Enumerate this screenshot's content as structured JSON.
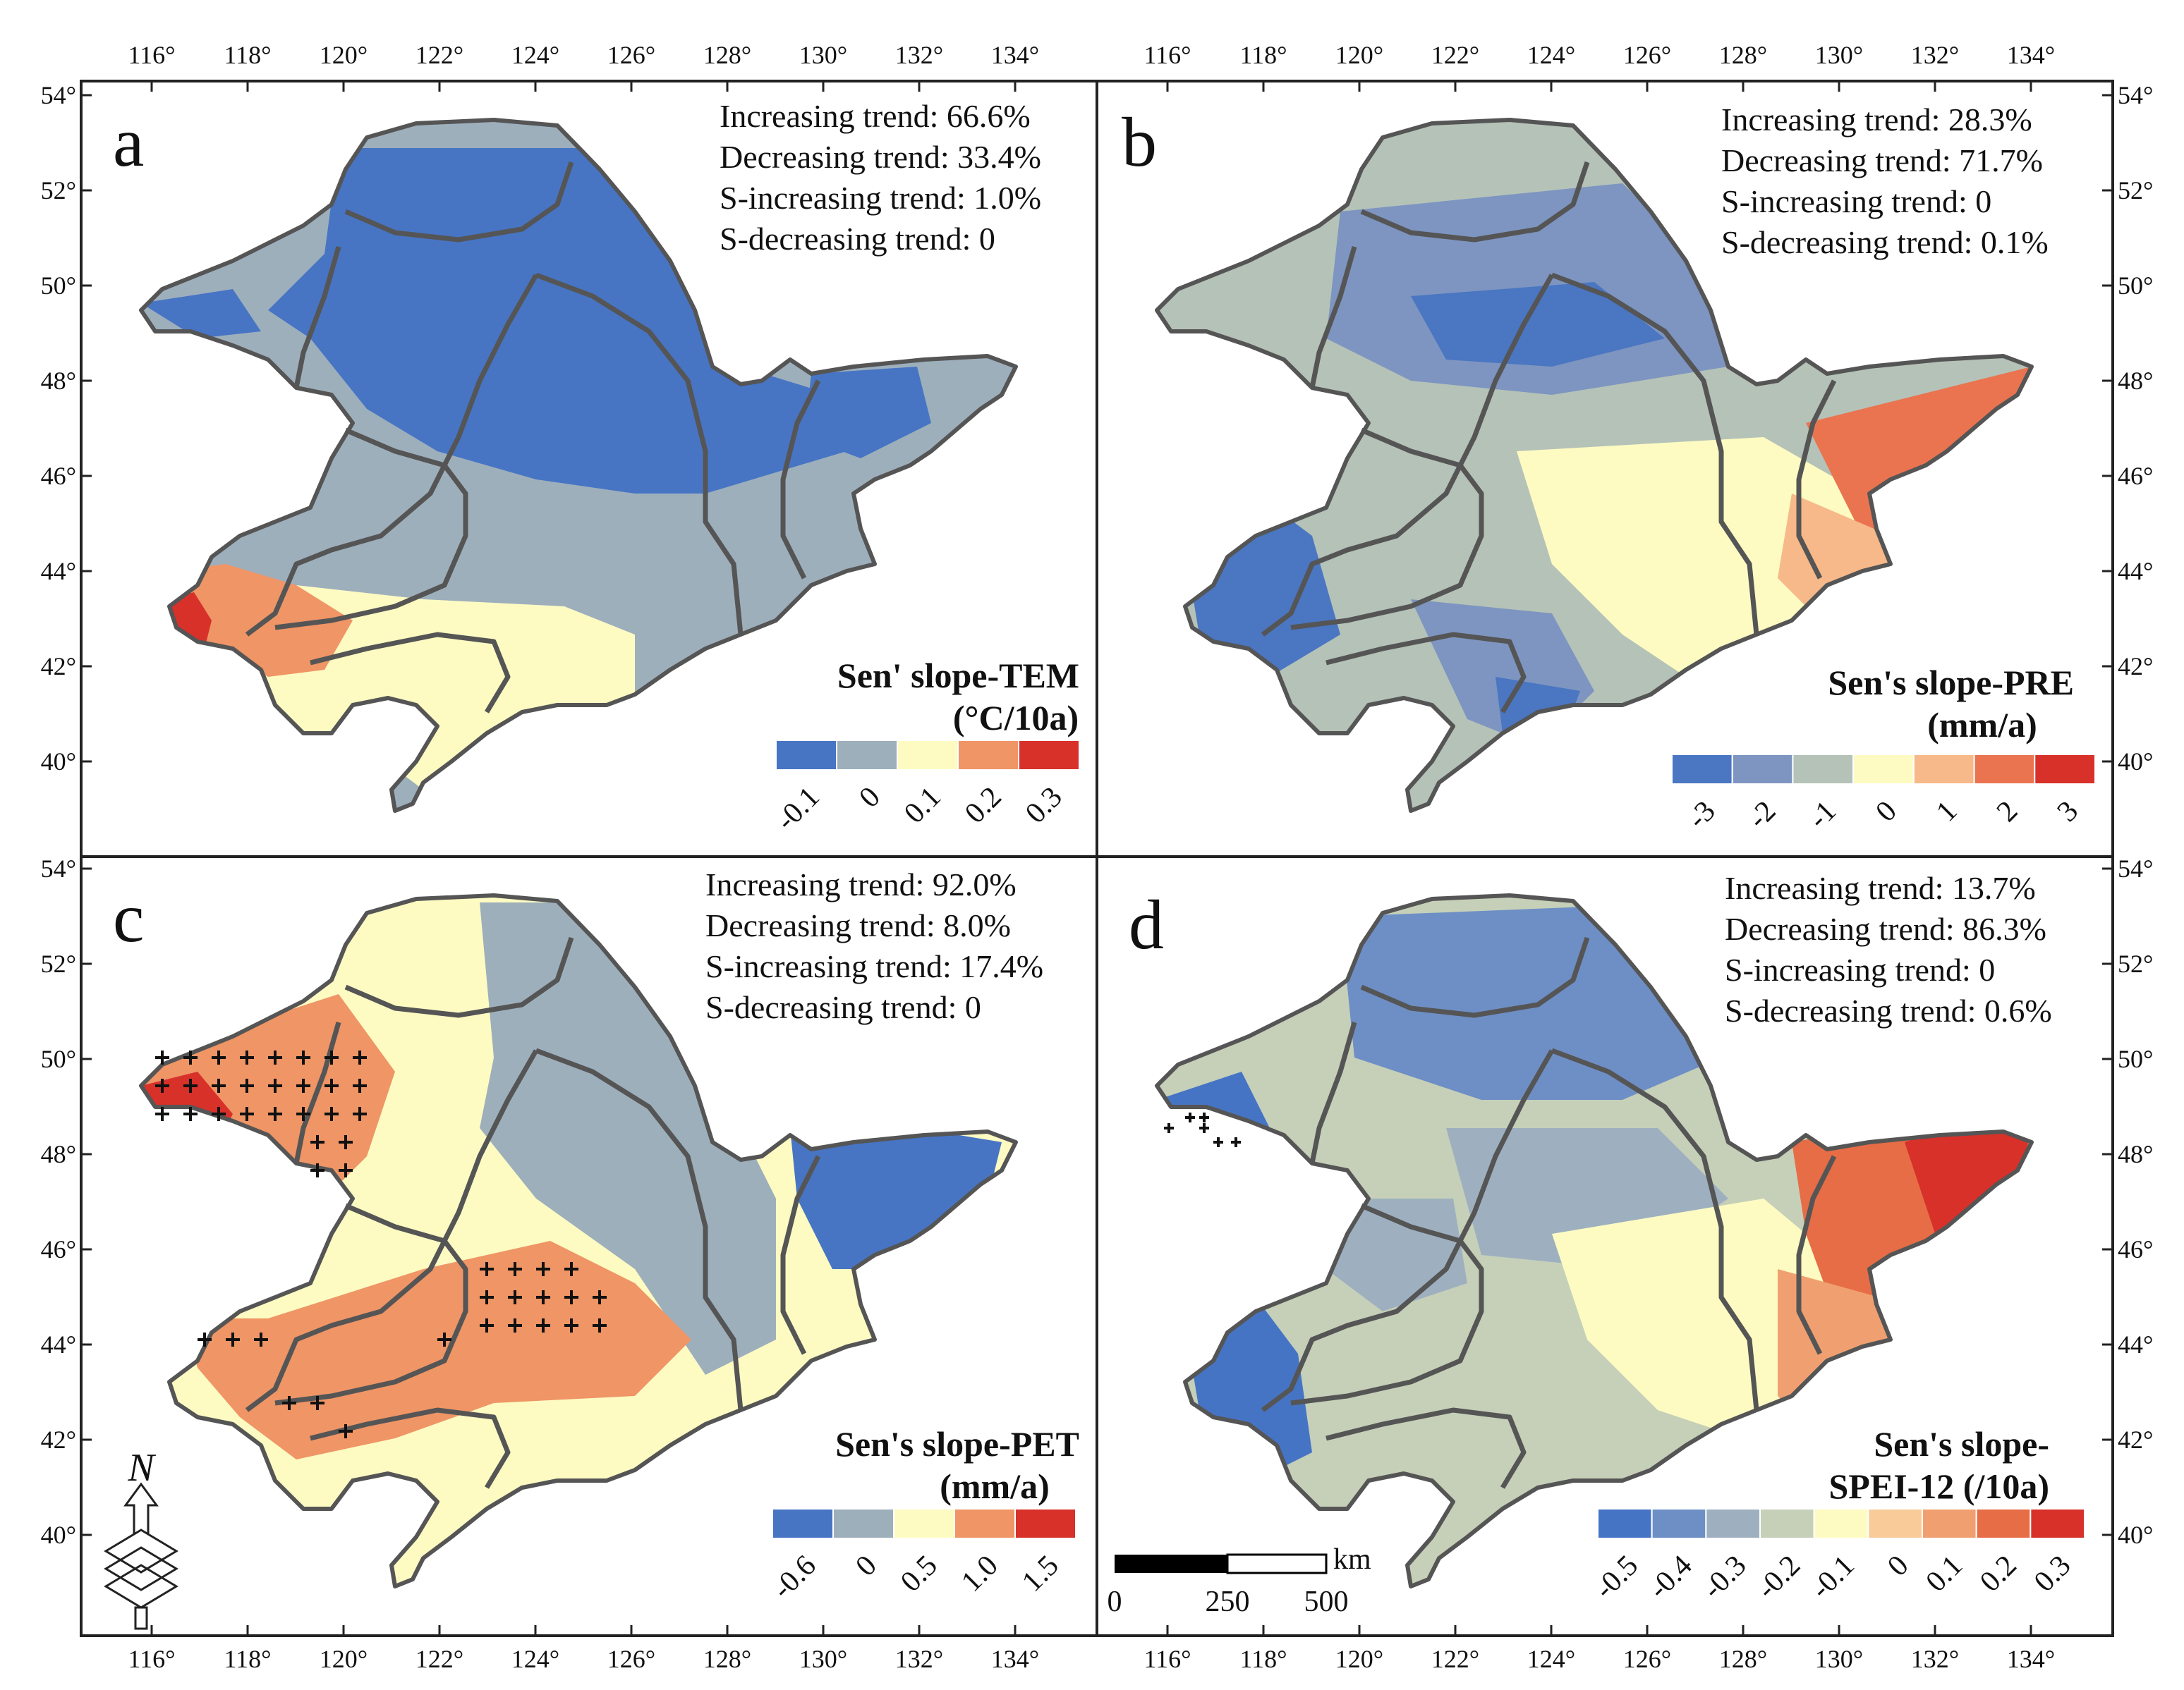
{
  "graticule": {
    "lon_labels": [
      "116°",
      "118°",
      "120°",
      "122°",
      "124°",
      "126°",
      "128°",
      "130°",
      "132°",
      "134°"
    ],
    "lat_labels": [
      "54°",
      "52°",
      "50°",
      "48°",
      "46°",
      "44°",
      "42°",
      "40°"
    ]
  },
  "panels": [
    {
      "letter": "a",
      "stats": [
        "Increasing trend: 66.6%",
        "Decreasing trend: 33.4%",
        "S-increasing trend: 1.0%",
        "S-decreasing trend: 0"
      ],
      "legend_title": [
        "Sen' slope-TEM",
        "(°C/10a)"
      ],
      "legend_colors": [
        "#4775c4",
        "#9eafbc",
        "#fdfbc2",
        "#ef9566",
        "#d7312a"
      ],
      "legend_ticks": [
        "-0.1",
        "0",
        "0.1",
        "0.2",
        "0.3"
      ]
    },
    {
      "letter": "b",
      "stats": [
        "Increasing trend: 28.3%",
        "Decreasing trend: 71.7%",
        "S-increasing trend: 0",
        "S-decreasing trend: 0.1%"
      ],
      "legend_title": [
        "Sen's slope-PRE",
        "(mm/a)"
      ],
      "legend_colors": [
        "#4a76c2",
        "#7d95c0",
        "#b5c2b8",
        "#fdfbc2",
        "#f7b989",
        "#ea7450",
        "#d7312a"
      ],
      "legend_ticks": [
        "-3",
        "-2",
        "-1",
        "0",
        "1",
        "2",
        "3"
      ]
    },
    {
      "letter": "c",
      "stats": [
        "Increasing trend: 92.0%",
        "Decreasing trend: 8.0%",
        "S-increasing trend: 17.4%",
        "S-decreasing trend: 0"
      ],
      "legend_title": [
        "Sen's slope-PET",
        "(mm/a)"
      ],
      "legend_colors": [
        "#4775c4",
        "#9eafbc",
        "#fdfbc2",
        "#ef9566",
        "#d7312a"
      ],
      "legend_ticks": [
        "-0.6",
        "0",
        "0.5",
        "1.0",
        "1.5"
      ]
    },
    {
      "letter": "d",
      "stats": [
        "Increasing trend: 13.7%",
        "Decreasing trend: 86.3%",
        "S-increasing trend: 0",
        "S-decreasing trend: 0.6%"
      ],
      "legend_title": [
        "Sen's slope-",
        "SPEI-12 (/10a)"
      ],
      "legend_colors": [
        "#4674c4",
        "#6e8fc5",
        "#9eb0c0",
        "#c6d0b8",
        "#fdfbc2",
        "#f8cb98",
        "#f0a070",
        "#e66d46",
        "#d7312a"
      ],
      "legend_ticks": [
        "-0.5",
        "-0.4",
        "-0.3",
        "-0.2",
        "-0.1",
        "0",
        "0.1",
        "0.2",
        "0.3"
      ]
    }
  ],
  "scale_bar": {
    "unit": "km",
    "labels": [
      "0",
      "250",
      "500"
    ]
  },
  "north_arrow": {
    "label": "N"
  }
}
